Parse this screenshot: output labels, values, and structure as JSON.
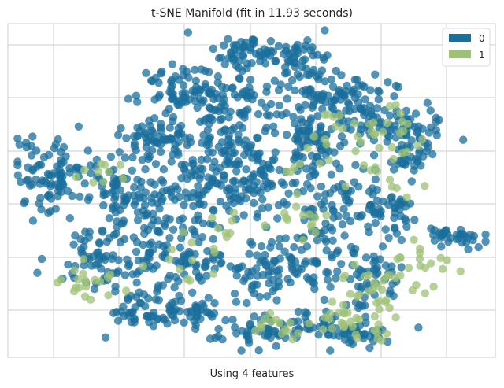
{
  "chart_data": {
    "type": "scatter",
    "title": "t-SNE Manifold (fit in 11.93 seconds)",
    "xlabel": "Using 4 features",
    "ylabel": "",
    "xlim": [
      0,
      100
    ],
    "ylim": [
      0,
      100
    ],
    "grid": true,
    "legend_position": "top-right",
    "colors": {
      "0": "#1a6f9c",
      "1": "#9dc176"
    },
    "series": [
      {
        "name": "0",
        "color": "#1a6f9c"
      },
      {
        "name": "1",
        "color": "#9dc176"
      }
    ],
    "clusters": [
      {
        "name": "0",
        "cx": 50,
        "cy": 91,
        "sx": 4,
        "sy": 3,
        "n": 60
      },
      {
        "name": "0",
        "cx": 60,
        "cy": 88,
        "sx": 3,
        "sy": 4,
        "n": 45
      },
      {
        "name": "0",
        "cx": 35,
        "cy": 80,
        "sx": 4,
        "sy": 4,
        "n": 60
      },
      {
        "name": "0",
        "cx": 46,
        "cy": 77,
        "sx": 5,
        "sy": 4,
        "n": 70
      },
      {
        "name": "0",
        "cx": 68,
        "cy": 79,
        "sx": 6,
        "sy": 3,
        "n": 70
      },
      {
        "name": "0",
        "cx": 74,
        "cy": 70,
        "sx": 5,
        "sy": 4,
        "n": 60
      },
      {
        "name": "0",
        "cx": 83,
        "cy": 64,
        "sx": 4,
        "sy": 5,
        "n": 65
      },
      {
        "name": "0",
        "cx": 62,
        "cy": 65,
        "sx": 3,
        "sy": 7,
        "n": 70
      },
      {
        "name": "0",
        "cx": 32,
        "cy": 66,
        "sx": 5,
        "sy": 3,
        "n": 55
      },
      {
        "name": "0",
        "cx": 47,
        "cy": 64,
        "sx": 5,
        "sy": 4,
        "n": 60
      },
      {
        "name": "0",
        "cx": 9,
        "cy": 55,
        "sx": 4,
        "sy": 6,
        "n": 90
      },
      {
        "name": "0",
        "cx": 22,
        "cy": 50,
        "sx": 2,
        "sy": 5,
        "n": 40
      },
      {
        "name": "0",
        "cx": 30,
        "cy": 50,
        "sx": 5,
        "sy": 7,
        "n": 70
      },
      {
        "name": "0",
        "cx": 40,
        "cy": 52,
        "sx": 4,
        "sy": 6,
        "n": 70
      },
      {
        "name": "0",
        "cx": 51,
        "cy": 52,
        "sx": 4,
        "sy": 5,
        "n": 60
      },
      {
        "name": "0",
        "cx": 66,
        "cy": 47,
        "sx": 4,
        "sy": 5,
        "n": 55
      },
      {
        "name": "0",
        "cx": 77,
        "cy": 43,
        "sx": 4,
        "sy": 4,
        "n": 50
      },
      {
        "name": "0",
        "cx": 92,
        "cy": 36,
        "sx": 3,
        "sy": 2,
        "n": 35
      },
      {
        "name": "0",
        "cx": 17,
        "cy": 31,
        "sx": 4,
        "sy": 5,
        "n": 55
      },
      {
        "name": "0",
        "cx": 28,
        "cy": 33,
        "sx": 4,
        "sy": 5,
        "n": 55
      },
      {
        "name": "0",
        "cx": 39,
        "cy": 30,
        "sx": 4,
        "sy": 6,
        "n": 60
      },
      {
        "name": "0",
        "cx": 52,
        "cy": 25,
        "sx": 4,
        "sy": 6,
        "n": 60
      },
      {
        "name": "0",
        "cx": 62,
        "cy": 28,
        "sx": 4,
        "sy": 6,
        "n": 55
      },
      {
        "name": "0",
        "cx": 74,
        "cy": 24,
        "sx": 4,
        "sy": 5,
        "n": 50
      },
      {
        "name": "0",
        "cx": 29,
        "cy": 14,
        "sx": 4,
        "sy": 3,
        "n": 45
      },
      {
        "name": "0",
        "cx": 37,
        "cy": 14,
        "sx": 4,
        "sy": 3,
        "n": 40
      },
      {
        "name": "0",
        "cx": 50,
        "cy": 7,
        "sx": 5,
        "sy": 2,
        "n": 40
      },
      {
        "name": "0",
        "cx": 64,
        "cy": 9,
        "sx": 5,
        "sy": 3,
        "n": 45
      },
      {
        "name": "0",
        "cx": 71,
        "cy": 7,
        "sx": 3,
        "sy": 2,
        "n": 30
      },
      {
        "name": "1",
        "cx": 72,
        "cy": 68,
        "sx": 5,
        "sy": 4,
        "n": 22
      },
      {
        "name": "1",
        "cx": 79,
        "cy": 60,
        "sx": 5,
        "sy": 5,
        "n": 20
      },
      {
        "name": "1",
        "cx": 62,
        "cy": 58,
        "sx": 3,
        "sy": 5,
        "n": 10
      },
      {
        "name": "1",
        "cx": 18,
        "cy": 55,
        "sx": 3,
        "sy": 2,
        "n": 10
      },
      {
        "name": "1",
        "cx": 17,
        "cy": 22,
        "sx": 3,
        "sy": 3,
        "n": 20
      },
      {
        "name": "1",
        "cx": 45,
        "cy": 38,
        "sx": 3,
        "sy": 3,
        "n": 10
      },
      {
        "name": "1",
        "cx": 61,
        "cy": 39,
        "sx": 2,
        "sy": 3,
        "n": 12
      },
      {
        "name": "1",
        "cx": 77,
        "cy": 21,
        "sx": 5,
        "sy": 4,
        "n": 30
      },
      {
        "name": "1",
        "cx": 71,
        "cy": 11,
        "sx": 5,
        "sy": 3,
        "n": 30
      },
      {
        "name": "1",
        "cx": 56,
        "cy": 10,
        "sx": 3,
        "sy": 2,
        "n": 15
      },
      {
        "name": "1",
        "cx": 86,
        "cy": 30,
        "sx": 3,
        "sy": 3,
        "n": 12
      },
      {
        "name": "1",
        "cx": 38,
        "cy": 30,
        "sx": 4,
        "sy": 4,
        "n": 10
      }
    ]
  }
}
